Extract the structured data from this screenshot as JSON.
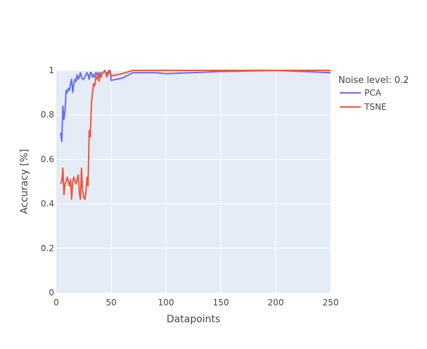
{
  "chart_data": {
    "type": "line",
    "title": "",
    "xlabel": "Datapoints",
    "ylabel": "Accuracy [%]",
    "xlim": [
      0,
      250
    ],
    "ylim": [
      0,
      1
    ],
    "x_ticks": [
      0,
      50,
      100,
      150,
      200,
      250
    ],
    "y_ticks": [
      0,
      0.2,
      0.4,
      0.6,
      0.8,
      1
    ],
    "x_tick_labels": [
      "0",
      "50",
      "100",
      "150",
      "200",
      "250"
    ],
    "y_tick_labels": [
      "0",
      "0.2",
      "0.4",
      "0.6",
      "0.8",
      "1"
    ],
    "grid": true,
    "legend": {
      "title": "Noise level: 0.2",
      "placement": "right"
    },
    "series": [
      {
        "name": "PCA",
        "color": "#636efa",
        "x": [
          4,
          5,
          6,
          7,
          8,
          9,
          10,
          11,
          12,
          13,
          14,
          15,
          16,
          17,
          18,
          19,
          20,
          21,
          22,
          23,
          24,
          25,
          26,
          27,
          28,
          29,
          30,
          31,
          32,
          33,
          34,
          35,
          36,
          37,
          38,
          39,
          40,
          41,
          42,
          43,
          44,
          45,
          46,
          47,
          48,
          49,
          50,
          60,
          70,
          80,
          90,
          100,
          150,
          200,
          250
        ],
        "y": [
          0.72,
          0.68,
          0.84,
          0.78,
          0.82,
          0.91,
          0.9,
          0.92,
          0.91,
          0.94,
          0.96,
          0.9,
          0.94,
          0.96,
          0.95,
          0.98,
          0.96,
          0.97,
          0.99,
          0.97,
          0.96,
          0.96,
          0.97,
          0.98,
          0.99,
          0.98,
          0.96,
          0.99,
          0.99,
          0.97,
          0.98,
          0.97,
          0.99,
          0.98,
          0.99,
          0.97,
          0.99,
          0.98,
          0.99,
          0.99,
          1.0,
          0.99,
          0.99,
          0.98,
          0.99,
          1.0,
          0.955,
          0.965,
          0.99,
          0.99,
          0.99,
          0.985,
          0.995,
          1.0,
          0.99
        ]
      },
      {
        "name": "TSNE",
        "color": "#ef553b",
        "x": [
          4,
          5,
          6,
          7,
          8,
          9,
          10,
          11,
          12,
          13,
          14,
          15,
          16,
          17,
          18,
          19,
          20,
          21,
          22,
          23,
          24,
          25,
          26,
          27,
          28,
          29,
          30,
          31,
          32,
          33,
          34,
          35,
          36,
          37,
          38,
          39,
          40,
          41,
          42,
          43,
          44,
          45,
          46,
          47,
          48,
          49,
          50,
          60,
          70,
          80,
          90,
          100,
          150,
          200,
          250
        ],
        "y": [
          0.49,
          0.5,
          0.56,
          0.44,
          0.49,
          0.5,
          0.52,
          0.5,
          0.48,
          0.51,
          0.42,
          0.5,
          0.52,
          0.5,
          0.49,
          0.51,
          0.53,
          0.45,
          0.42,
          0.56,
          0.46,
          0.43,
          0.42,
          0.45,
          0.52,
          0.48,
          0.73,
          0.7,
          0.85,
          0.9,
          0.94,
          0.93,
          0.97,
          0.96,
          0.99,
          0.95,
          0.98,
          0.97,
          0.99,
          0.99,
          1.0,
          0.99,
          0.97,
          0.99,
          1.0,
          1.0,
          0.975,
          0.985,
          1.0,
          1.0,
          1.0,
          1.0,
          1.0,
          1.0,
          1.0
        ]
      }
    ]
  }
}
